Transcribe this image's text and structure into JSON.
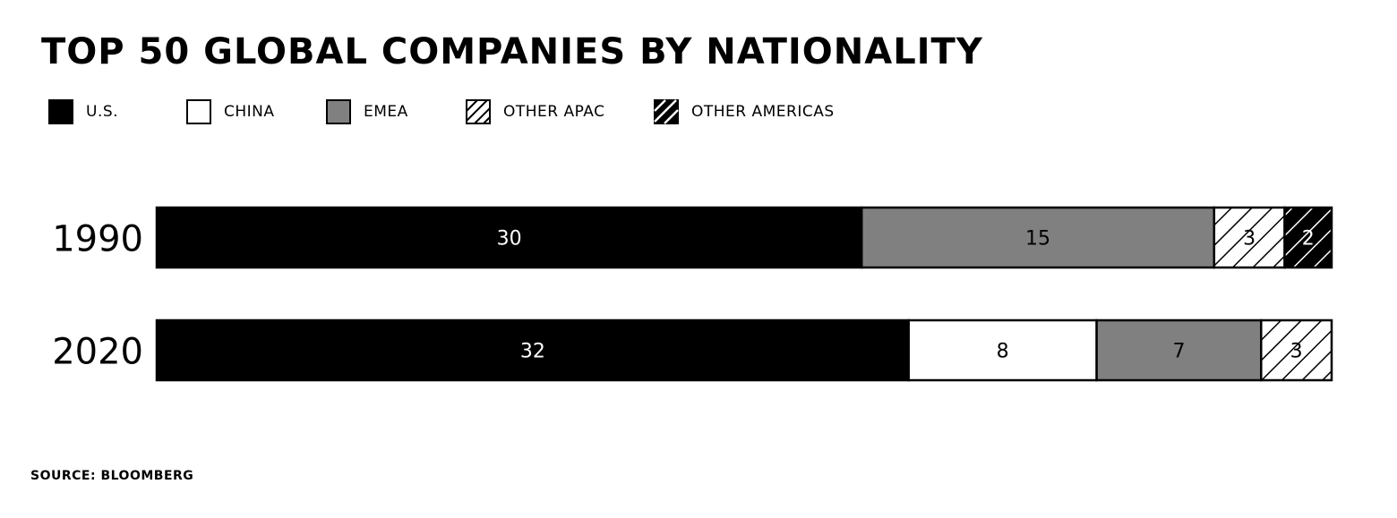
{
  "chart_data": {
    "type": "bar",
    "orientation": "horizontal",
    "stacked": true,
    "title": "TOP 50 GLOBAL COMPANIES BY NATIONALITY",
    "categories": [
      "1990",
      "2020"
    ],
    "series": [
      {
        "name": "U.S.",
        "values": [
          30,
          32
        ],
        "color": "#000000",
        "pattern": "solid",
        "label_color": "#ffffff"
      },
      {
        "name": "CHINA",
        "values": [
          0,
          8
        ],
        "color": "#ffffff",
        "pattern": "solid",
        "label_color": "#000000"
      },
      {
        "name": "EMEA",
        "values": [
          15,
          7
        ],
        "color": "#808080",
        "pattern": "solid",
        "label_color": "#000000"
      },
      {
        "name": "OTHER APAC",
        "values": [
          3,
          3
        ],
        "color": "#ffffff",
        "pattern": "hatch-light",
        "label_color": "#000000"
      },
      {
        "name": "OTHER AMERICAS",
        "values": [
          2,
          0
        ],
        "color": "#000000",
        "pattern": "hatch-dark",
        "label_color": "#ffffff"
      }
    ],
    "total": 50,
    "legend_position": "top-left",
    "grid": false,
    "xlabel": "",
    "ylabel": ""
  },
  "source": "SOURCE: BLOOMBERG"
}
